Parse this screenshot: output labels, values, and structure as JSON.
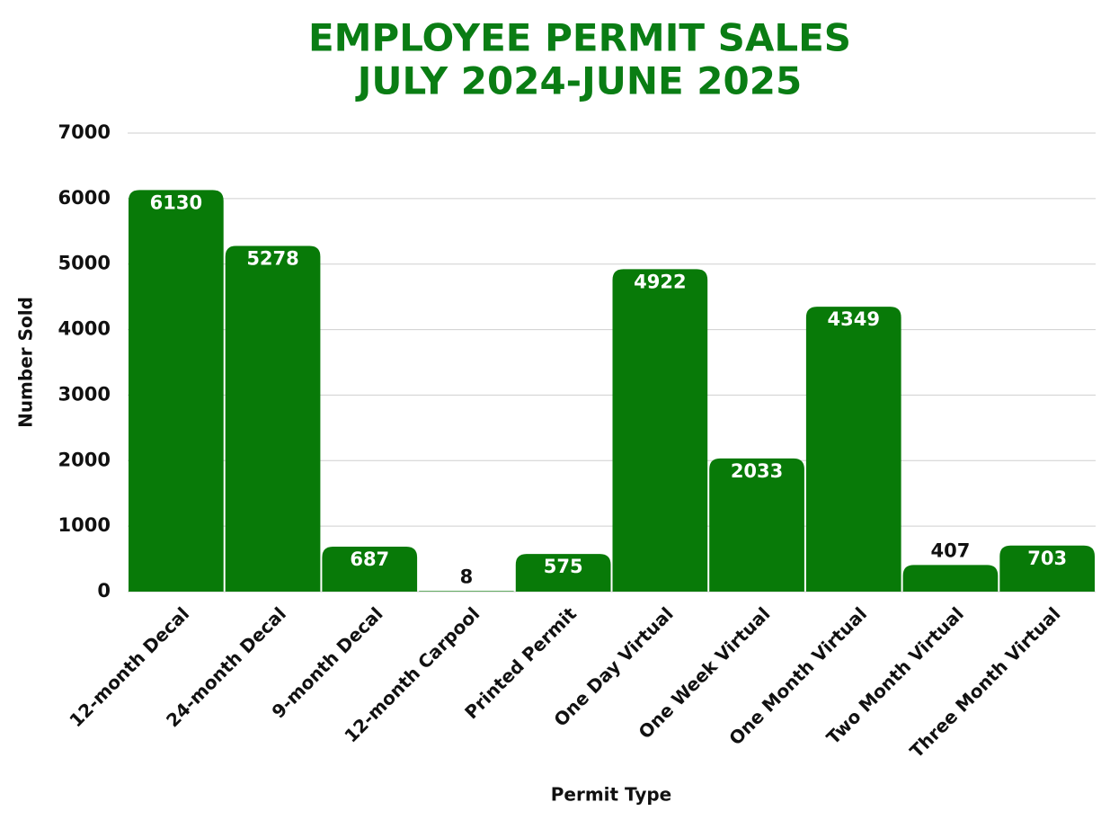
{
  "chart_data": {
    "type": "bar",
    "title": [
      "EMPLOYEE PERMIT SALES",
      "JULY 2024-JUNE 2025"
    ],
    "x_label": "Permit Type",
    "y_label": "Number Sold",
    "categories": [
      "12-month Decal",
      "24-month Decal",
      "9-month Decal",
      "12-month Carpool",
      "Printed Permit",
      "One Day Virtual",
      "One Week Virtual",
      "One Month Virtual",
      "Two Month Virtual",
      "Three Month Virtual"
    ],
    "values": [
      6130,
      5278,
      687,
      8,
      575,
      4922,
      2033,
      4349,
      407,
      703
    ],
    "color": "#087a08",
    "ylim": [
      0,
      7000
    ],
    "yticks": [
      0,
      1000,
      2000,
      3000,
      4000,
      5000,
      6000,
      7000
    ],
    "grid": true
  }
}
